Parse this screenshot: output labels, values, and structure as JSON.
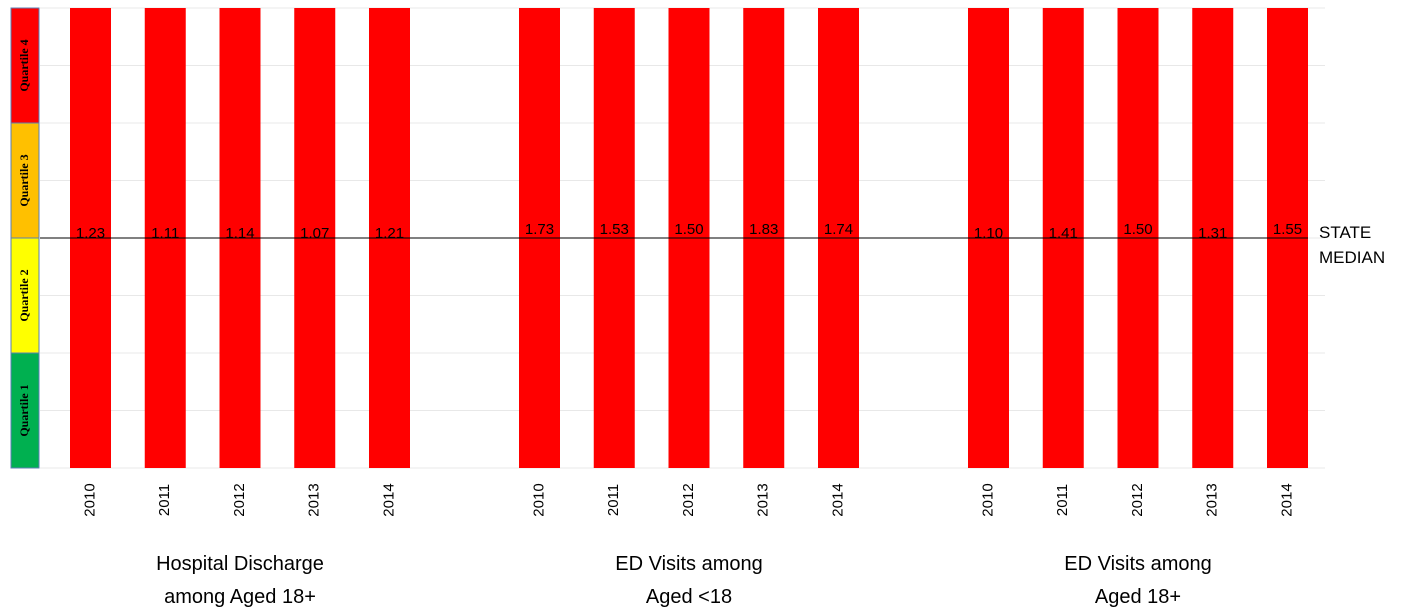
{
  "chart_data": {
    "type": "bar",
    "quartile_legend": [
      {
        "label": "Quartile 4",
        "color": "#ff0000"
      },
      {
        "label": "Quartile 3",
        "color": "#ffc000"
      },
      {
        "label": "Quartile 2",
        "color": "#ffff00"
      },
      {
        "label": "Quartile 1",
        "color": "#00b050"
      }
    ],
    "groups": [
      {
        "label_lines": [
          "Hospital Discharge",
          "among Aged 18+"
        ],
        "years": [
          "2010",
          "2011",
          "2012",
          "2013",
          "2014"
        ],
        "values": [
          "1.23",
          "1.11",
          "1.14",
          "1.07",
          "1.21"
        ]
      },
      {
        "label_lines": [
          "ED Visits among",
          "Aged <18"
        ],
        "years": [
          "2010",
          "2011",
          "2012",
          "2013",
          "2014"
        ],
        "values": [
          "1.73",
          "1.53",
          "1.50",
          "1.83",
          "1.74"
        ]
      },
      {
        "label_lines": [
          "ED Visits among",
          "Aged 18+"
        ],
        "years": [
          "2010",
          "2011",
          "2012",
          "2013",
          "2014"
        ],
        "values": [
          "1.10",
          "1.41",
          "1.50",
          "1.31",
          "1.55"
        ]
      }
    ],
    "bar_color": "#ff0000",
    "median_label_lines": [
      "STATE",
      "MEDIAN"
    ],
    "gridlines": true
  }
}
